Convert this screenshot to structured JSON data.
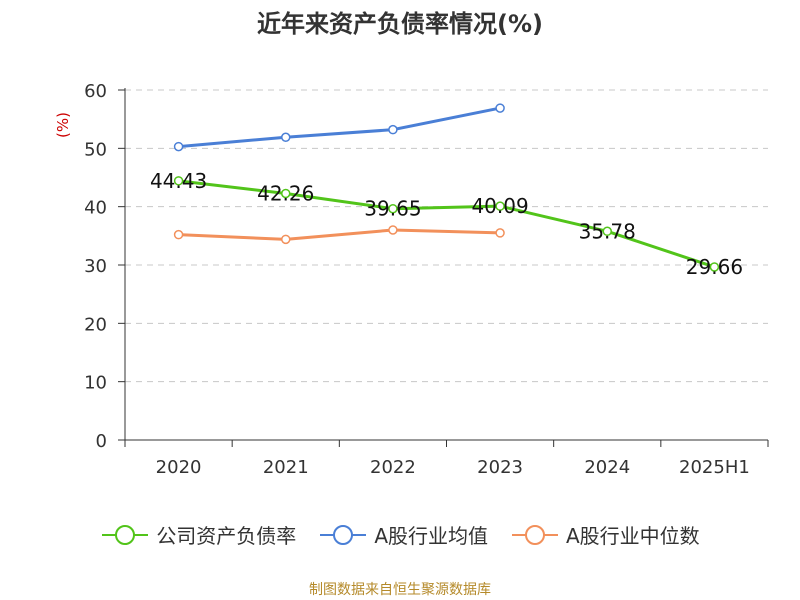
{
  "title": "近年来资产负债率情况(%)",
  "source": "制图数据来自恒生聚源数据库",
  "chart_data": {
    "type": "line",
    "title": "近年来资产负债率情况(%)",
    "xlabel": "",
    "ylabel": "(%)",
    "categories": [
      "2020",
      "2021",
      "2022",
      "2023",
      "2024",
      "2025H1"
    ],
    "ylim": [
      0,
      60
    ],
    "yticks": [
      0,
      10,
      20,
      30,
      40,
      50,
      60
    ],
    "grid": true,
    "legend_position": "bottom",
    "series": [
      {
        "name": "公司资产负债率",
        "color": "#52c41a",
        "values": [
          44.43,
          42.26,
          39.65,
          40.09,
          35.78,
          29.66
        ],
        "labels": [
          "44.43",
          "42.26",
          "39.65",
          "40.09",
          "35.78",
          "29.66"
        ]
      },
      {
        "name": "A股行业均值",
        "color": "#4a7fd6",
        "values": [
          50.3,
          51.9,
          53.2,
          56.9,
          null,
          null
        ]
      },
      {
        "name": "A股行业中位数",
        "color": "#f2905b",
        "values": [
          35.2,
          34.4,
          36.0,
          35.5,
          null,
          null
        ]
      }
    ]
  }
}
